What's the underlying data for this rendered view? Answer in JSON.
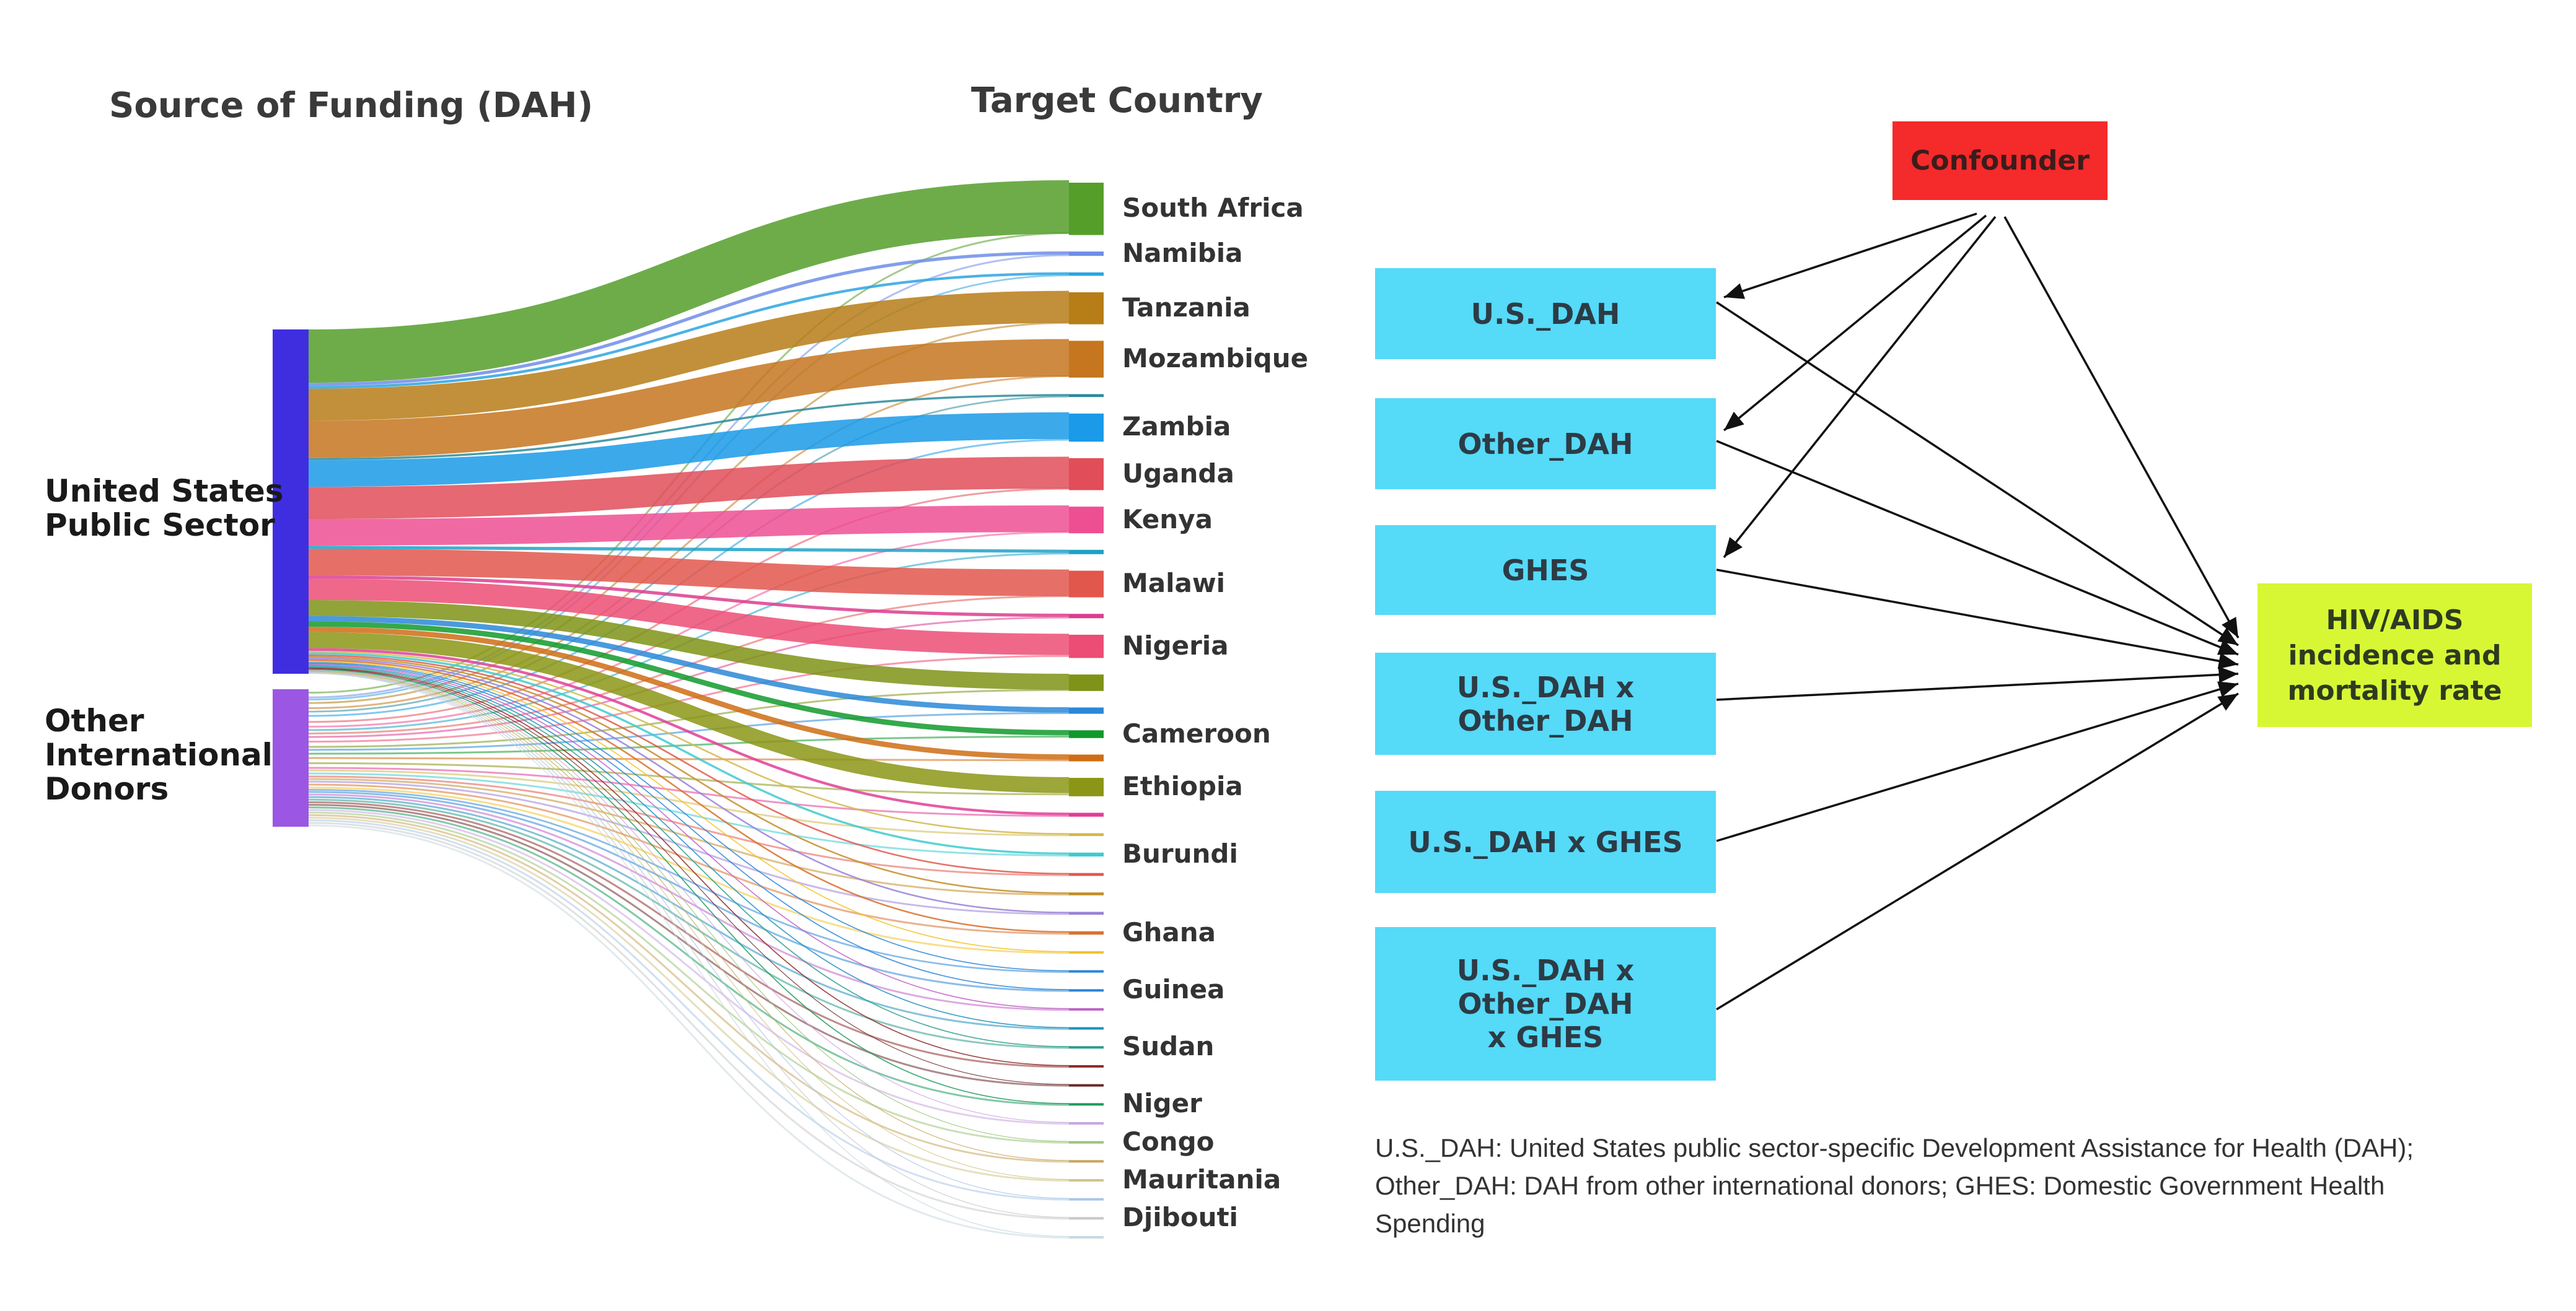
{
  "sankey": {
    "source_heading": "Source of Funding (DAH)",
    "target_heading": "Target Country",
    "sources": [
      {
        "label_line1": "United States",
        "label_line2": "Public Sector",
        "label_line3": "",
        "color": "#3f2ee0"
      },
      {
        "label_line1": "Other",
        "label_line2": "International",
        "label_line3": "Donors",
        "color": "#9b57e3"
      }
    ],
    "targets": [
      {
        "label": "South Africa",
        "color": "#559e2a"
      },
      {
        "label": "Namibia",
        "color": "#6e8de8"
      },
      {
        "label": "",
        "color": "#2ba4e0"
      },
      {
        "label": "Tanzania",
        "color": "#b77d17"
      },
      {
        "label": "Mozambique",
        "color": "#c6761e"
      },
      {
        "label": "",
        "color": "#2b8b9b"
      },
      {
        "label": "Zambia",
        "color": "#1a9ae8"
      },
      {
        "label": "Uganda",
        "color": "#e14d59"
      },
      {
        "label": "Kenya",
        "color": "#ee4f93"
      },
      {
        "label": "",
        "color": "#1ea2c8"
      },
      {
        "label": "Malawi",
        "color": "#e2574c"
      },
      {
        "label": "",
        "color": "#dc3d8e"
      },
      {
        "label": "Nigeria",
        "color": "#ec4d74"
      },
      {
        "label": "",
        "color": "#7f9318"
      },
      {
        "label": "",
        "color": "#2a88d8"
      },
      {
        "label": "Cameroon",
        "color": "#109a2b"
      },
      {
        "label": "",
        "color": "#cf6d14"
      },
      {
        "label": "Ethiopia",
        "color": "#8b9616"
      },
      {
        "label": "",
        "color": "#e03e98"
      },
      {
        "label": "",
        "color": "#d2b84e"
      },
      {
        "label": "Burundi",
        "color": "#3ecbd0"
      },
      {
        "label": "",
        "color": "#e15a4e"
      },
      {
        "label": "",
        "color": "#c48e2b"
      },
      {
        "label": "",
        "color": "#9a81d8"
      },
      {
        "label": "Ghana",
        "color": "#d8722e"
      },
      {
        "label": "",
        "color": "#f3c22a"
      },
      {
        "label": "",
        "color": "#2b86d8"
      },
      {
        "label": "Guinea",
        "color": "#2b86d8"
      },
      {
        "label": "",
        "color": "#c064c8"
      },
      {
        "label": "",
        "color": "#2090c0"
      },
      {
        "label": "Sudan",
        "color": "#2e9d8a"
      },
      {
        "label": "",
        "color": "#8e2d2d"
      },
      {
        "label": "",
        "color": "#6a2a2a"
      },
      {
        "label": "Niger",
        "color": "#1e9b5e"
      },
      {
        "label": "",
        "color": "#c8a6e0"
      },
      {
        "label": "Congo",
        "color": "#9cc47a"
      },
      {
        "label": "",
        "color": "#c8a660"
      },
      {
        "label": "Mauritania",
        "color": "#d2c48a"
      },
      {
        "label": "",
        "color": "#aac6e8"
      },
      {
        "label": "Djibouti",
        "color": "#c8c8c8"
      },
      {
        "label": "",
        "color": "#c8d8e0"
      }
    ],
    "flows_us": [
      10,
      0.6,
      0.5,
      6,
      7,
      0.4,
      5,
      6,
      5,
      0.6,
      5,
      0.6,
      4,
      3,
      1,
      1,
      1,
      3,
      0.5,
      0.3,
      0.4,
      0.3,
      0.3,
      0.3,
      0.3,
      0.2,
      0.2,
      0.2,
      0.2,
      0.2,
      0.2,
      0.2,
      0.1,
      0.2,
      0.1,
      0.1,
      0.1,
      0.1,
      0.1,
      0.1,
      0.1
    ],
    "flows_other": [
      0.8,
      0.3,
      0.2,
      0.6,
      0.6,
      0.2,
      0.8,
      0.6,
      0.5,
      0.3,
      0.5,
      0.3,
      0.8,
      0.4,
      0.3,
      0.6,
      0.4,
      0.8,
      0.3,
      0.3,
      0.4,
      0.3,
      0.3,
      0.3,
      0.4,
      0.3,
      0.2,
      0.3,
      0.3,
      0.3,
      0.3,
      0.3,
      0.3,
      0.3,
      0.3,
      0.3,
      0.3,
      0.3,
      0.3,
      0.3,
      0.3
    ]
  },
  "diagram": {
    "confounder": "Confounder",
    "boxes": [
      {
        "line1": "U.S._DAH",
        "line2": ""
      },
      {
        "line1": "Other_DAH",
        "line2": ""
      },
      {
        "line1": "GHES",
        "line2": ""
      },
      {
        "line1": "U.S._DAH x Other_DAH",
        "line2": ""
      },
      {
        "line1": "U.S._DAH x GHES",
        "line2": ""
      },
      {
        "line1": "U.S._DAH x Other_DAH",
        "line2": "x GHES"
      }
    ],
    "outcome_line1": "HIV/AIDS",
    "outcome_line2": "incidence and",
    "outcome_line3": "mortality rate",
    "colors": {
      "box": "#55daf8",
      "confounder": "#f52a2a",
      "outcome": "#d7f735"
    }
  },
  "note": {
    "line1": "U.S._DAH: United States public sector-specific Development Assistance for Health (DAH);",
    "line2": "Other_DAH: DAH from other international donors; GHES: Domestic Government Health",
    "line3": "Spending"
  }
}
